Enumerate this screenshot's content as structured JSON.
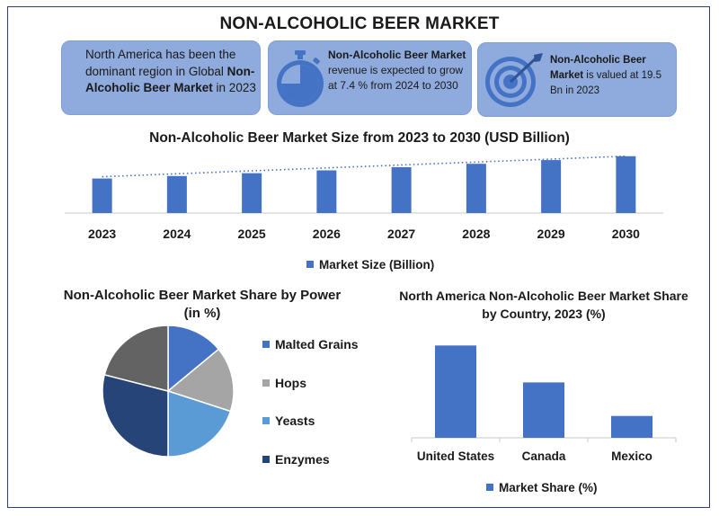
{
  "title": "NON-ALCOHOLIC BEER MARKET",
  "info_boxes": [
    {
      "pre": "North America has been the dominant region in Global ",
      "bold": "Non-Alcoholic Beer Market",
      "post": " in 2023",
      "icon": "none"
    },
    {
      "pre": "",
      "bold": "Non-Alcoholic Beer Market",
      "post": " revenue is expected to grow at 7.4 % from 2024 to 2030",
      "icon": "stopwatch-icon"
    },
    {
      "pre": "",
      "bold": "Non-Alcoholic Beer Market",
      "post": " is valued at 19.5 Bn in 2023",
      "icon": "target-icon"
    }
  ],
  "colors": {
    "box_fill": "#8faadc",
    "bar": "#4472c4",
    "icon": "#4472c4",
    "frame": "#2b3f73",
    "pie": [
      "#4472c4",
      "#a5a5a5",
      "#5b9bd5",
      "#264478",
      "#636363"
    ]
  },
  "chart_data": [
    {
      "type": "bar",
      "title": "Non-Alcoholic Beer Market Size from 2023 to 2030 (USD Billion)",
      "categories": [
        "2023",
        "2024",
        "2025",
        "2026",
        "2027",
        "2028",
        "2029",
        "2030"
      ],
      "series": [
        {
          "name": "Market Size (Billion)",
          "values": [
            19.5,
            20.9,
            22.5,
            24.1,
            25.9,
            27.8,
            29.9,
            32.1
          ]
        }
      ],
      "trendline": "dotted linear",
      "legend": "bottom",
      "ylim": [
        0,
        34
      ]
    },
    {
      "type": "pie",
      "title": "Non-Alcoholic Beer  Market Share by Power (in %)",
      "labels": [
        "Malted Grains",
        "Hops",
        "Yeasts",
        "Enzymes",
        ""
      ],
      "values": [
        14,
        16,
        20,
        29,
        21
      ],
      "legend": "right"
    },
    {
      "type": "bar",
      "title": "North America Non-Alcoholic Beer  Market  Share by Country, 2023 (%)",
      "categories": [
        "United States",
        "Canada",
        "Mexico"
      ],
      "series": [
        {
          "name": "Market Share (%)",
          "values": [
            55,
            33,
            13
          ]
        }
      ],
      "legend": "bottom",
      "ylim": [
        0,
        60
      ]
    }
  ]
}
